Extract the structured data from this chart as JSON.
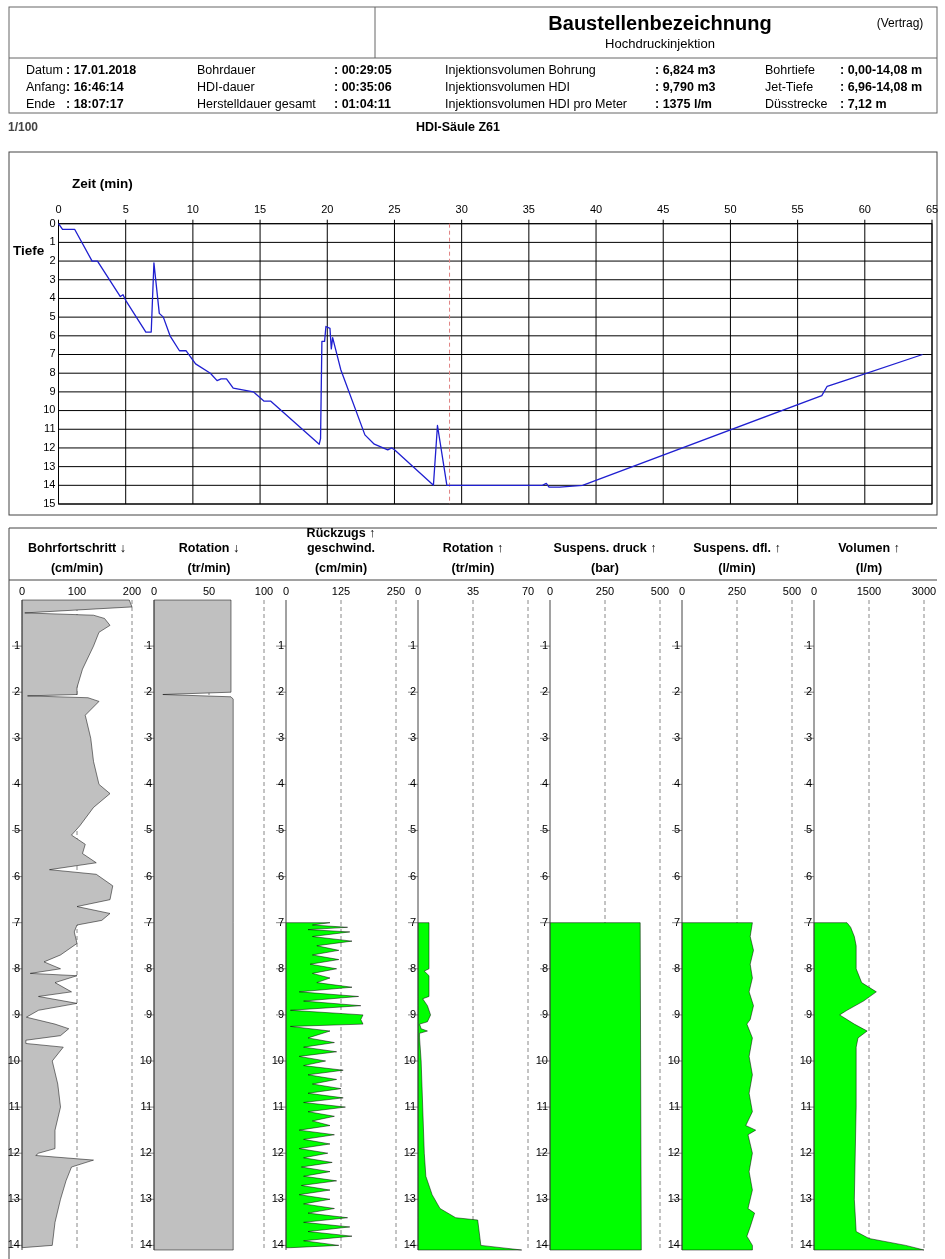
{
  "chart_data": [
    {
      "type": "other",
      "title": "Baustellenbezeichnung",
      "subtitle": "Hochdruckinjektion",
      "annotations": [
        "(Vertrag)",
        "Datum",
        ": 17.01.2018",
        "Anfang",
        ": 16:46:14",
        "Ende",
        ": 18:07:17",
        "Bohrdauer",
        ": 00:29:05",
        "HDI-dauer",
        ": 00:35:06",
        "Herstelldauer gesamt",
        ": 01:04:11",
        "Injektionsvolumen Bohrung",
        ": 6,824 m3",
        "Injektionsvolumen HDI",
        ": 9,790 m3",
        "Injektionsvolumen HDI pro Meter",
        ": 1375 l/m",
        "Bohrtiefe",
        ": 0,00-14,08 m",
        "Jet-Tiefe",
        ": 6,96-14,08 m",
        "Düsstrecke",
        ": 7,12 m",
        "1/100",
        "HDI-Säule Z61"
      ]
    },
    {
      "type": "line",
      "xlabel": "Zeit (min)",
      "ylabel": "Tiefe",
      "xlim": [
        0,
        65
      ],
      "xticks": [
        0,
        5,
        10,
        15,
        20,
        25,
        30,
        35,
        40,
        45,
        50,
        55,
        60,
        65
      ],
      "ylim": [
        15,
        0
      ],
      "yticks": [
        0,
        1,
        2,
        3,
        4,
        5,
        6,
        7,
        8,
        9,
        10,
        11,
        12,
        13,
        14,
        15
      ],
      "grid": true,
      "ref_lines": [
        {
          "axis": "x",
          "value": 29.1,
          "color": "#e08080",
          "line_style": "dashed"
        }
      ],
      "series": [
        {
          "color": "#1f1fd0",
          "x": [
            0,
            0.3,
            1.2,
            2.5,
            2.9,
            4.6,
            4.8,
            5.0,
            6.5,
            6.9,
            7.1,
            7.5,
            7.8,
            8.3,
            9.0,
            9.5,
            10.2,
            11.3,
            11.8,
            12.1,
            12.5,
            13.0,
            14.5,
            15.3,
            15.8,
            19.4,
            19.5,
            19.6,
            19.8,
            19.9,
            20.2,
            20.3,
            20.4,
            21.0,
            22.8,
            23.5,
            24.5,
            24.8,
            25.0,
            27.9,
            28.2,
            28.9,
            36.0,
            36.3,
            36.5,
            37.3,
            39.0,
            56.8,
            57.2,
            58.5,
            64.3
          ],
          "values": [
            0,
            0.3,
            0.3,
            2.0,
            2.0,
            3.9,
            3.8,
            4.1,
            5.8,
            5.8,
            2.1,
            4.8,
            5.0,
            6.0,
            6.8,
            6.8,
            7.5,
            8.0,
            8.4,
            8.3,
            8.3,
            8.8,
            9.0,
            9.5,
            9.5,
            11.8,
            11.5,
            6.3,
            6.3,
            5.5,
            5.6,
            6.7,
            6.1,
            7.8,
            11.3,
            11.8,
            12.1,
            12.0,
            12.1,
            14.0,
            10.8,
            14.0,
            14.0,
            13.9,
            14.1,
            14.1,
            14.0,
            9.2,
            8.7,
            8.4,
            7.0
          ]
        }
      ]
    },
    {
      "type": "area",
      "orientation": "horizontal",
      "title": "Bohrfortschritt ↓",
      "xlabel": "(cm/min)",
      "xlim": [
        0,
        200
      ],
      "xticks": [
        0,
        100,
        200
      ],
      "ylim": [
        14.1,
        0
      ],
      "yticks": [
        1,
        2,
        3,
        4,
        5,
        6,
        7,
        8,
        9,
        10,
        11,
        12,
        13,
        14
      ],
      "grid": "x",
      "series": [
        {
          "color": "#c0c0c0",
          "x": [
            0,
            0.15,
            0.28,
            0.33,
            0.4,
            0.55,
            0.7,
            1.0,
            1.5,
            1.9,
            2.05,
            2.08,
            2.12,
            2.2,
            2.5,
            3.0,
            3.5,
            4.0,
            4.2,
            4.5,
            4.9,
            5.1,
            5.3,
            5.5,
            5.7,
            5.85,
            5.95,
            6.2,
            6.5,
            6.65,
            6.8,
            6.95,
            7.05,
            7.2,
            7.45,
            7.7,
            7.85,
            8.0,
            8.1,
            8.15,
            8.3,
            8.5,
            8.6,
            8.75,
            8.9,
            9.05,
            9.2,
            9.3,
            9.45,
            9.55,
            9.62,
            9.7,
            10.0,
            10.5,
            11.0,
            11.5,
            11.9,
            12.0,
            12.05,
            12.15,
            12.3,
            12.6,
            13.0,
            13.5,
            14.0,
            14.05
          ],
          "values": [
            195,
            200,
            5,
            130,
            150,
            160,
            140,
            130,
            110,
            100,
            100,
            10,
            120,
            140,
            115,
            125,
            130,
            140,
            160,
            130,
            105,
            90,
            115,
            110,
            135,
            50,
            135,
            165,
            160,
            100,
            160,
            145,
            100,
            95,
            100,
            70,
            40,
            70,
            15,
            100,
            60,
            90,
            30,
            100,
            30,
            8,
            60,
            85,
            70,
            7,
            7,
            75,
            55,
            65,
            70,
            60,
            60,
            30,
            25,
            130,
            90,
            80,
            70,
            60,
            55,
            0
          ]
        }
      ]
    },
    {
      "type": "area",
      "orientation": "horizontal",
      "title": "Rotation ↓",
      "xlabel": "(tr/min)",
      "xlim": [
        0,
        100
      ],
      "xticks": [
        0,
        50,
        100
      ],
      "ylim": [
        14.1,
        0
      ],
      "yticks": [
        1,
        2,
        3,
        4,
        5,
        6,
        7,
        8,
        9,
        10,
        11,
        12,
        13,
        14
      ],
      "grid": "x",
      "series": [
        {
          "color": "#c0c0c0",
          "x": [
            0,
            2.0,
            2.05,
            2.1,
            2.15,
            7.0,
            10.0,
            14.1
          ],
          "values": [
            70,
            70,
            8,
            70,
            72,
            72,
            72,
            72
          ]
        }
      ]
    },
    {
      "type": "area",
      "orientation": "horizontal",
      "title": "Rückzugs ↑ geschwind.",
      "xlabel": "(cm/min)",
      "xlim": [
        0,
        250
      ],
      "xticks": [
        0,
        125,
        250
      ],
      "ylim": [
        14.1,
        0
      ],
      "yticks": [
        1,
        2,
        3,
        4,
        5,
        6,
        7,
        8,
        9,
        10,
        11,
        12,
        13,
        14
      ],
      "grid": "x",
      "series": [
        {
          "color": "#00ff00",
          "x": [
            7.0,
            7.0,
            7.05,
            7.1,
            7.15,
            7.2,
            7.3,
            7.4,
            7.5,
            7.6,
            7.7,
            7.8,
            7.9,
            8.0,
            8.1,
            8.2,
            8.3,
            8.4,
            8.5,
            8.6,
            8.7,
            8.8,
            8.9,
            9.0,
            9.1,
            9.2,
            9.25,
            9.35,
            9.5,
            9.6,
            9.7,
            9.8,
            9.9,
            10.0,
            10.1,
            10.2,
            10.3,
            10.4,
            10.5,
            10.6,
            10.7,
            10.8,
            10.9,
            11.0,
            11.1,
            11.2,
            11.3,
            11.4,
            11.5,
            11.6,
            11.7,
            11.8,
            11.9,
            12.0,
            12.1,
            12.2,
            12.3,
            12.4,
            12.5,
            12.6,
            12.7,
            12.8,
            12.9,
            13.0,
            13.1,
            13.2,
            13.3,
            13.4,
            13.5,
            13.6,
            13.7,
            13.8,
            13.9,
            14.0,
            14.05
          ],
          "values": [
            0,
            100,
            60,
            140,
            50,
            145,
            60,
            150,
            70,
            120,
            60,
            120,
            55,
            115,
            60,
            100,
            70,
            150,
            30,
            165,
            40,
            170,
            10,
            175,
            170,
            175,
            10,
            100,
            50,
            110,
            40,
            115,
            30,
            90,
            40,
            130,
            50,
            115,
            60,
            125,
            50,
            130,
            40,
            135,
            50,
            110,
            60,
            100,
            30,
            110,
            40,
            100,
            30,
            95,
            40,
            105,
            35,
            100,
            40,
            115,
            35,
            100,
            30,
            100,
            40,
            110,
            50,
            140,
            40,
            145,
            50,
            150,
            40,
            120,
            10
          ]
        }
      ]
    },
    {
      "type": "area",
      "orientation": "horizontal",
      "title": "Rotation ↑",
      "xlabel": "(tr/min)",
      "xlim": [
        0,
        70
      ],
      "xticks": [
        0,
        35,
        70
      ],
      "ylim": [
        14.1,
        0
      ],
      "yticks": [
        1,
        2,
        3,
        4,
        5,
        6,
        7,
        8,
        9,
        10,
        11,
        12,
        13,
        14
      ],
      "grid": "x",
      "series": [
        {
          "color": "#00ff00",
          "x": [
            7.0,
            7.0,
            8.0,
            8.05,
            8.15,
            8.6,
            8.65,
            8.8,
            9.0,
            9.15,
            9.2,
            9.3,
            9.35,
            9.4,
            9.5,
            10.0,
            11.0,
            12.0,
            12.5,
            12.9,
            13.2,
            13.4,
            13.45,
            14.0,
            14.1
          ],
          "values": [
            0,
            7,
            7,
            4,
            7,
            7,
            3,
            6,
            8,
            6,
            1,
            2,
            6,
            1,
            1,
            2,
            3,
            4,
            5,
            9,
            14,
            24,
            38,
            40,
            66
          ]
        }
      ]
    },
    {
      "type": "area",
      "orientation": "horizontal",
      "title": "Suspens. druck ↑",
      "xlabel": "(bar)",
      "xlim": [
        0,
        500
      ],
      "xticks": [
        0,
        250,
        500
      ],
      "ylim": [
        14.1,
        0
      ],
      "yticks": [
        1,
        2,
        3,
        4,
        5,
        6,
        7,
        8,
        9,
        10,
        11,
        12,
        13,
        14
      ],
      "grid": "x",
      "series": [
        {
          "color": "#00ff00",
          "x": [
            7.0,
            7.0,
            10.0,
            14.1
          ],
          "values": [
            0,
            410,
            412,
            415
          ]
        }
      ]
    },
    {
      "type": "area",
      "orientation": "horizontal",
      "title": "Suspens. dfl. ↑",
      "xlabel": "(l/min)",
      "xlim": [
        0,
        500
      ],
      "xticks": [
        0,
        250,
        500
      ],
      "ylim": [
        14.1,
        0
      ],
      "yticks": [
        1,
        2,
        3,
        4,
        5,
        6,
        7,
        8,
        9,
        10,
        11,
        12,
        13,
        14
      ],
      "grid": "x",
      "series": [
        {
          "color": "#00ff00",
          "x": [
            7.0,
            7.0,
            7.3,
            7.6,
            7.9,
            8.2,
            8.5,
            8.8,
            9.1,
            9.2,
            9.5,
            9.9,
            10.3,
            10.7,
            11.1,
            11.4,
            11.5,
            11.6,
            12.0,
            12.4,
            12.8,
            13.2,
            13.3,
            13.6,
            13.8,
            14.0,
            14.1
          ],
          "values": [
            0,
            320,
            310,
            325,
            310,
            320,
            305,
            325,
            310,
            295,
            320,
            305,
            320,
            305,
            320,
            290,
            335,
            300,
            320,
            305,
            320,
            300,
            330,
            310,
            295,
            320,
            320
          ]
        }
      ]
    },
    {
      "type": "area",
      "orientation": "horizontal",
      "title": "Volumen ↑",
      "xlabel": "(l/m)",
      "xlim": [
        0,
        3000
      ],
      "xticks": [
        0,
        1500,
        3000
      ],
      "ylim": [
        14.1,
        0
      ],
      "yticks": [
        1,
        2,
        3,
        4,
        5,
        6,
        7,
        8,
        9,
        10,
        11,
        12,
        13,
        14
      ],
      "grid": "x",
      "series": [
        {
          "color": "#00ff00",
          "x": [
            7.0,
            7.0,
            7.1,
            7.3,
            7.5,
            8.0,
            8.3,
            8.5,
            8.7,
            8.9,
            9.0,
            9.2,
            9.35,
            9.5,
            9.7,
            11.0,
            13.0,
            13.7,
            13.85,
            14.0,
            14.1
          ],
          "values": [
            0,
            900,
            1000,
            1100,
            1150,
            1150,
            1300,
            1700,
            1350,
            900,
            700,
            1100,
            1450,
            1200,
            1150,
            1150,
            1100,
            1150,
            1500,
            2500,
            3000
          ]
        }
      ]
    }
  ]
}
